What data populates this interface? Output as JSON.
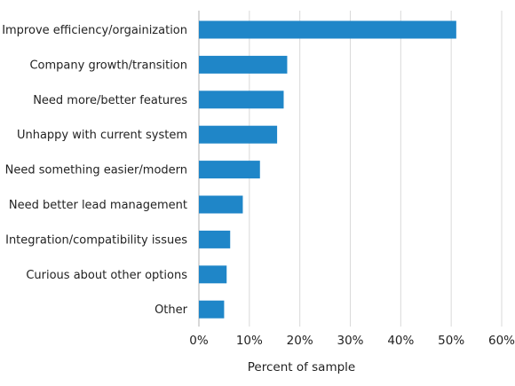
{
  "chart_data": {
    "type": "bar",
    "orientation": "horizontal",
    "categories": [
      "Improve efficiency/orgainization",
      "Company growth/transition",
      "Need more/better features",
      "Unhappy with current system",
      "Need something easier/modern",
      "Need better lead management",
      "Integration/compatibility issues",
      "Curious about other options",
      "Other"
    ],
    "values": [
      51,
      17.5,
      16.8,
      15.5,
      12.1,
      8.7,
      6.2,
      5.5,
      5.0
    ],
    "xlabel": "Percent of sample",
    "ylabel": "",
    "xlim": [
      0,
      60
    ],
    "x_ticks": [
      "0%",
      "10%",
      "20%",
      "30%",
      "40%",
      "50%",
      "60%"
    ],
    "grid": "vertical",
    "bar_color": "#1f86c8",
    "grid_color": "#d9d9d9",
    "axis_color": "#b0b0b0"
  }
}
